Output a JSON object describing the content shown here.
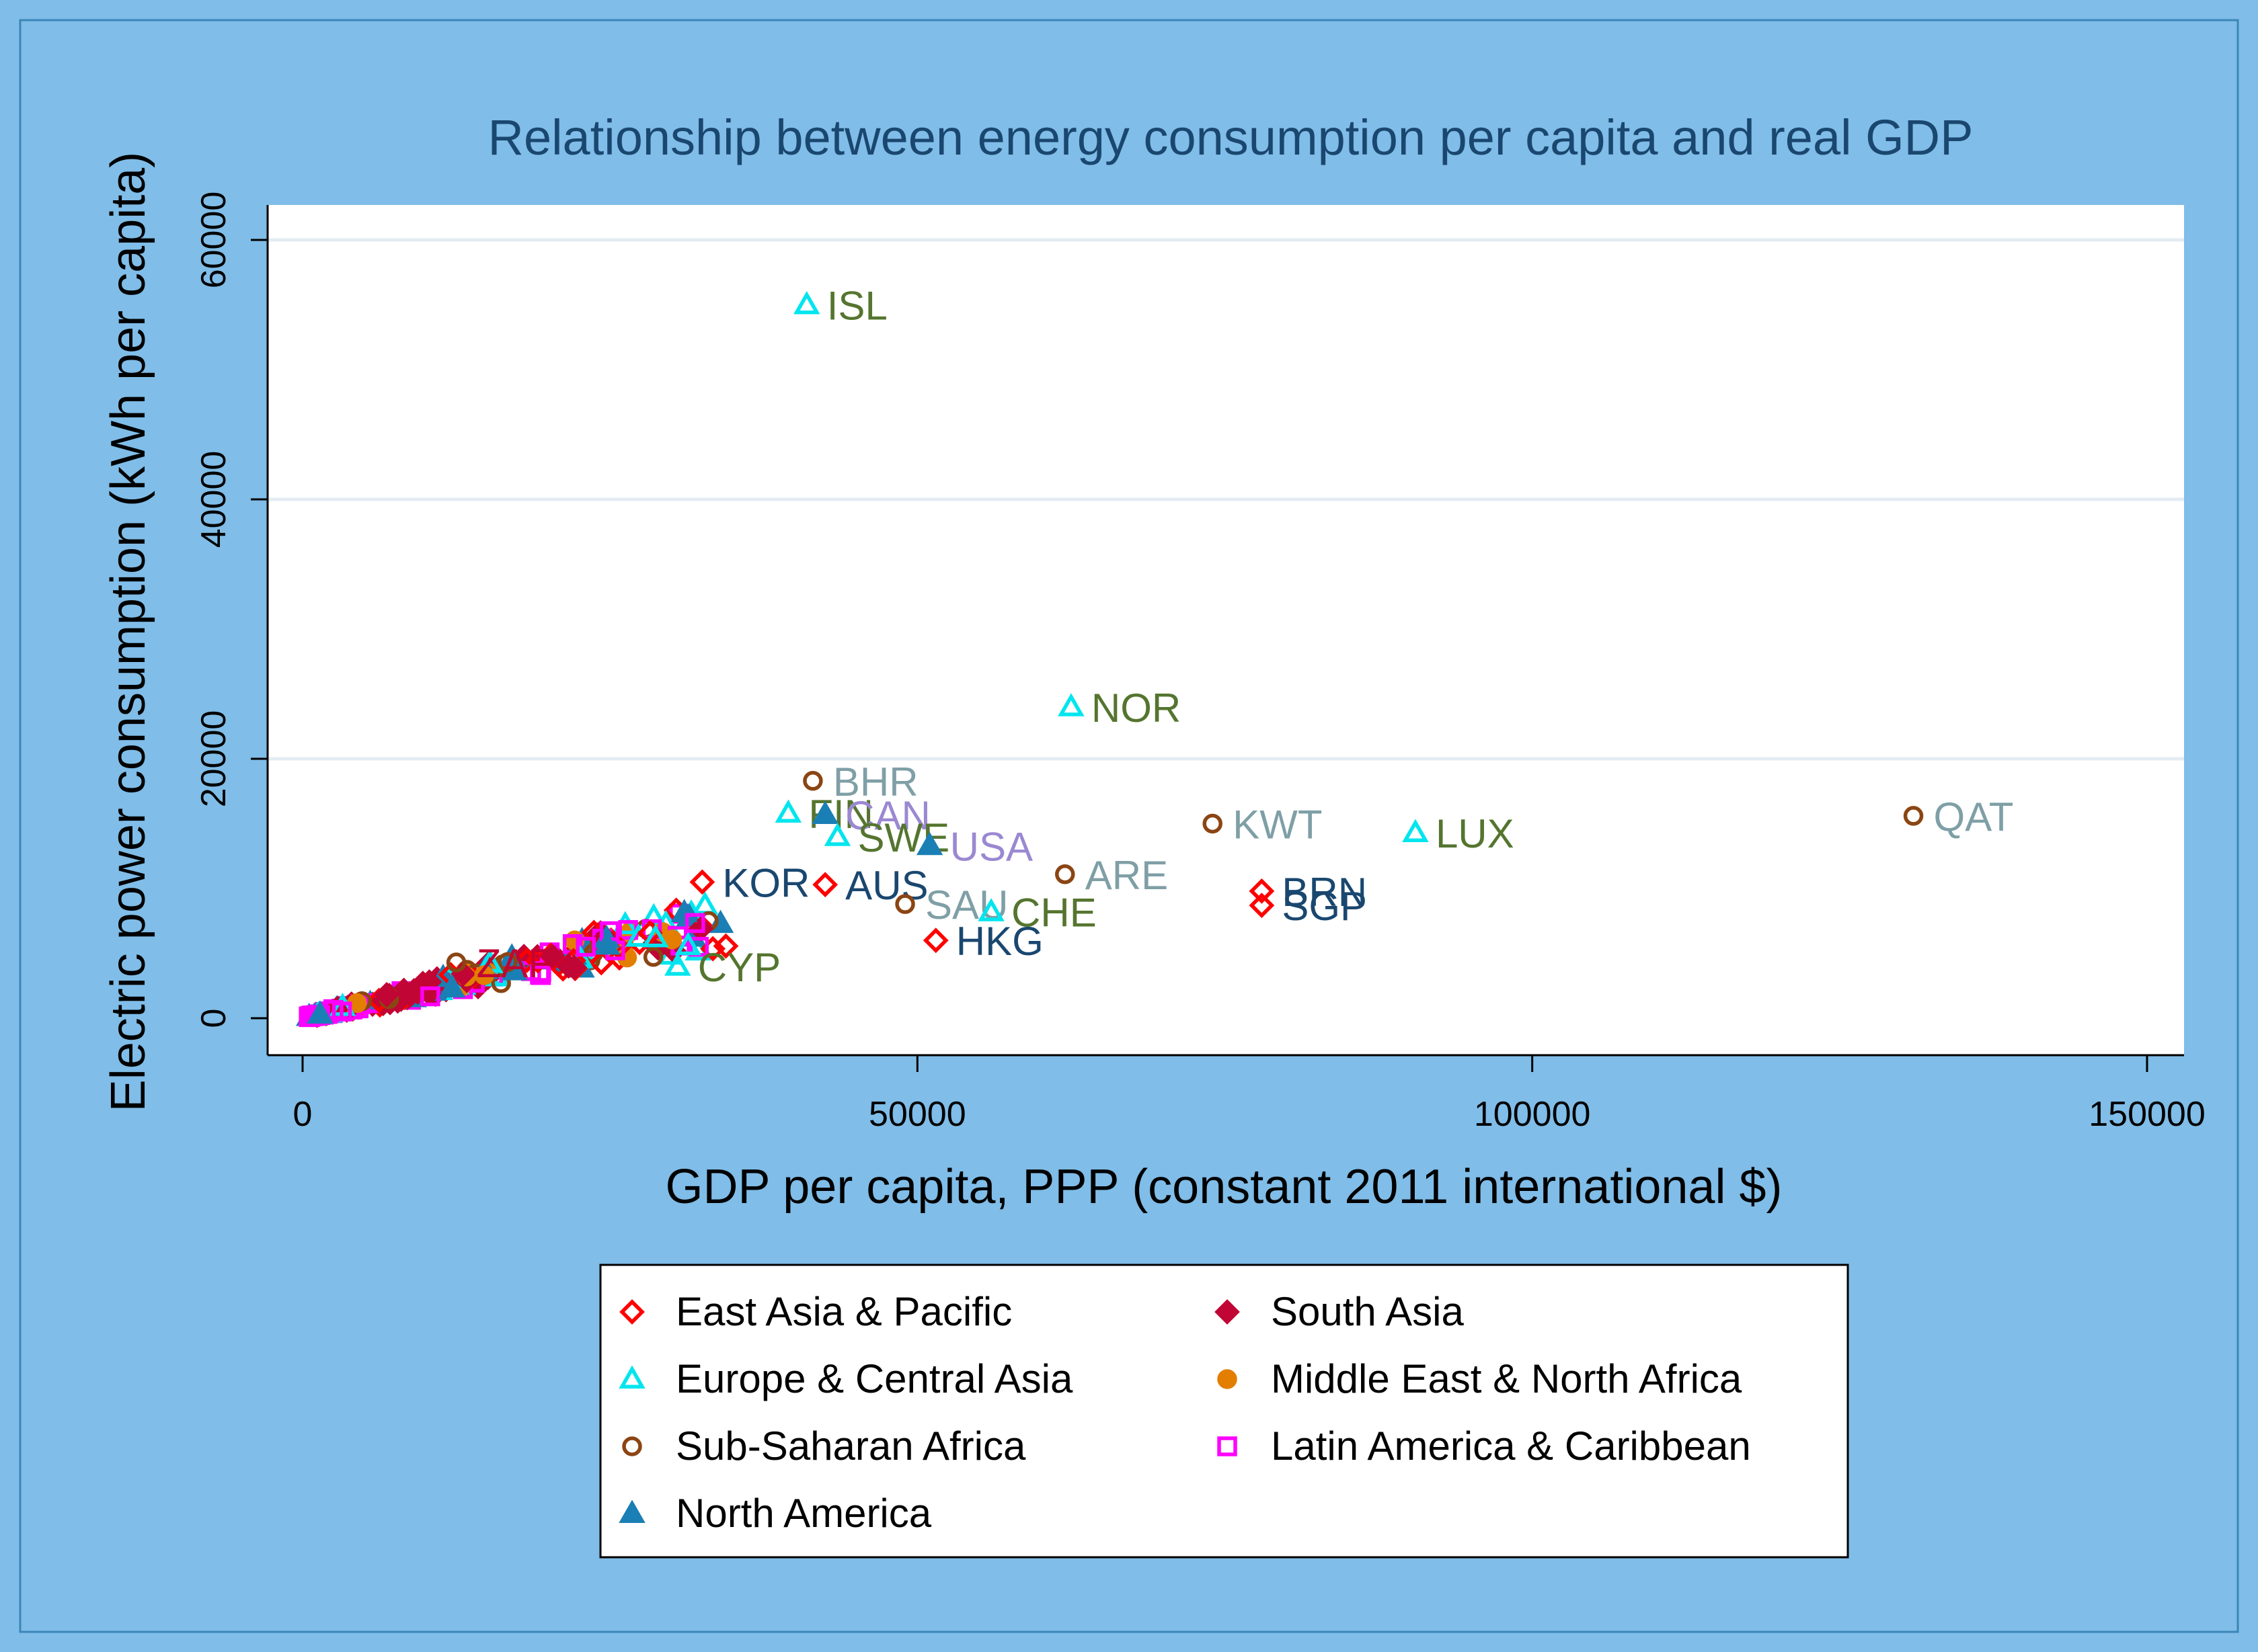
{
  "chart_data": {
    "type": "scatter",
    "title": "Relationship between energy consumption per capita and real GDP",
    "xlabel": "GDP per capita, PPP (constant 2011 international $)",
    "ylabel": "Electric power consumption (kWh per capita)",
    "xlim": [
      0,
      150000
    ],
    "ylim": [
      0,
      60000
    ],
    "xticks": [
      0,
      50000,
      100000,
      150000
    ],
    "yticks": [
      0,
      20000,
      40000,
      60000
    ],
    "grid": "horizontal",
    "legend_position": "bottom",
    "colors": {
      "outer_background": "#80BDE8",
      "plot_background": "#FFFFFF",
      "gridline": "#E4ECF2",
      "title": "#1A476F"
    },
    "legend": [
      {
        "name": "East Asia & Pacific",
        "marker": "diamond-hollow",
        "color": "#FF0000"
      },
      {
        "name": "South Asia",
        "marker": "diamond-filled",
        "color": "#C10534"
      },
      {
        "name": "Europe & Central Asia",
        "marker": "triangle-hollow",
        "color": "#00E5EE"
      },
      {
        "name": "Middle East & North Africa",
        "marker": "circle-filled",
        "color": "#E37E00"
      },
      {
        "name": "Sub-Saharan Africa",
        "marker": "circle-hollow",
        "color": "#8B4513"
      },
      {
        "name": "Latin America & Caribbean",
        "marker": "square-hollow",
        "color": "#FF00FF"
      },
      {
        "name": "North America",
        "marker": "triangle-filled",
        "color": "#1A7FB5"
      }
    ],
    "points": [
      {
        "label": "ISL",
        "x": 41000,
        "y": 55000,
        "region": "Europe & Central Asia",
        "label_color": "#55752F"
      },
      {
        "label": "NOR",
        "x": 62500,
        "y": 24000,
        "region": "Europe & Central Asia",
        "label_color": "#55752F"
      },
      {
        "label": "BHR",
        "x": 41500,
        "y": 18300,
        "region": "Sub-Saharan Africa",
        "label_color": "#7F9FA6"
      },
      {
        "label": "FIN",
        "x": 39500,
        "y": 15800,
        "region": "Europe & Central Asia",
        "label_color": "#55752F"
      },
      {
        "label": "CAN",
        "x": 42500,
        "y": 15700,
        "region": "North America",
        "label_color": "#9B88D1"
      },
      {
        "label": "SWE",
        "x": 43500,
        "y": 14000,
        "region": "Europe & Central Asia",
        "label_color": "#55752F"
      },
      {
        "label": "USA",
        "x": 51000,
        "y": 13300,
        "region": "North America",
        "label_color": "#9B88D1"
      },
      {
        "label": "KWT",
        "x": 74000,
        "y": 15000,
        "region": "Sub-Saharan Africa",
        "label_color": "#7F9FA6"
      },
      {
        "label": "LUX",
        "x": 90500,
        "y": 14300,
        "region": "Europe & Central Asia",
        "label_color": "#55752F"
      },
      {
        "label": "QAT",
        "x": 131000,
        "y": 15600,
        "region": "Sub-Saharan Africa",
        "label_color": "#7F9FA6"
      },
      {
        "label": "ARE",
        "x": 62000,
        "y": 11100,
        "region": "Sub-Saharan Africa",
        "label_color": "#7F9FA6"
      },
      {
        "label": "KOR",
        "x": 32500,
        "y": 10500,
        "region": "East Asia & Pacific",
        "label_color": "#1A476F"
      },
      {
        "label": "AUS",
        "x": 42500,
        "y": 10300,
        "region": "East Asia & Pacific",
        "label_color": "#1A476F"
      },
      {
        "label": "SAU",
        "x": 49000,
        "y": 8800,
        "region": "Sub-Saharan Africa",
        "label_color": "#7F9FA6"
      },
      {
        "label": "CHE",
        "x": 56000,
        "y": 8200,
        "region": "Europe & Central Asia",
        "label_color": "#55752F"
      },
      {
        "label": "BRN",
        "x": 78000,
        "y": 9800,
        "region": "East Asia & Pacific",
        "label_color": "#1A476F"
      },
      {
        "label": "SGP",
        "x": 78000,
        "y": 8700,
        "region": "East Asia & Pacific",
        "label_color": "#1A476F"
      },
      {
        "label": "HKG",
        "x": 51500,
        "y": 6000,
        "region": "East Asia & Pacific",
        "label_color": "#1A476F"
      },
      {
        "label": "CYP",
        "x": 30500,
        "y": 4000,
        "region": "Europe & Central Asia",
        "label_color": "#55752F"
      },
      {
        "label": "ZAF",
        "x": 12500,
        "y": 4300,
        "region": "Sub-Saharan Africa",
        "label_color": "#C10534"
      }
    ]
  }
}
